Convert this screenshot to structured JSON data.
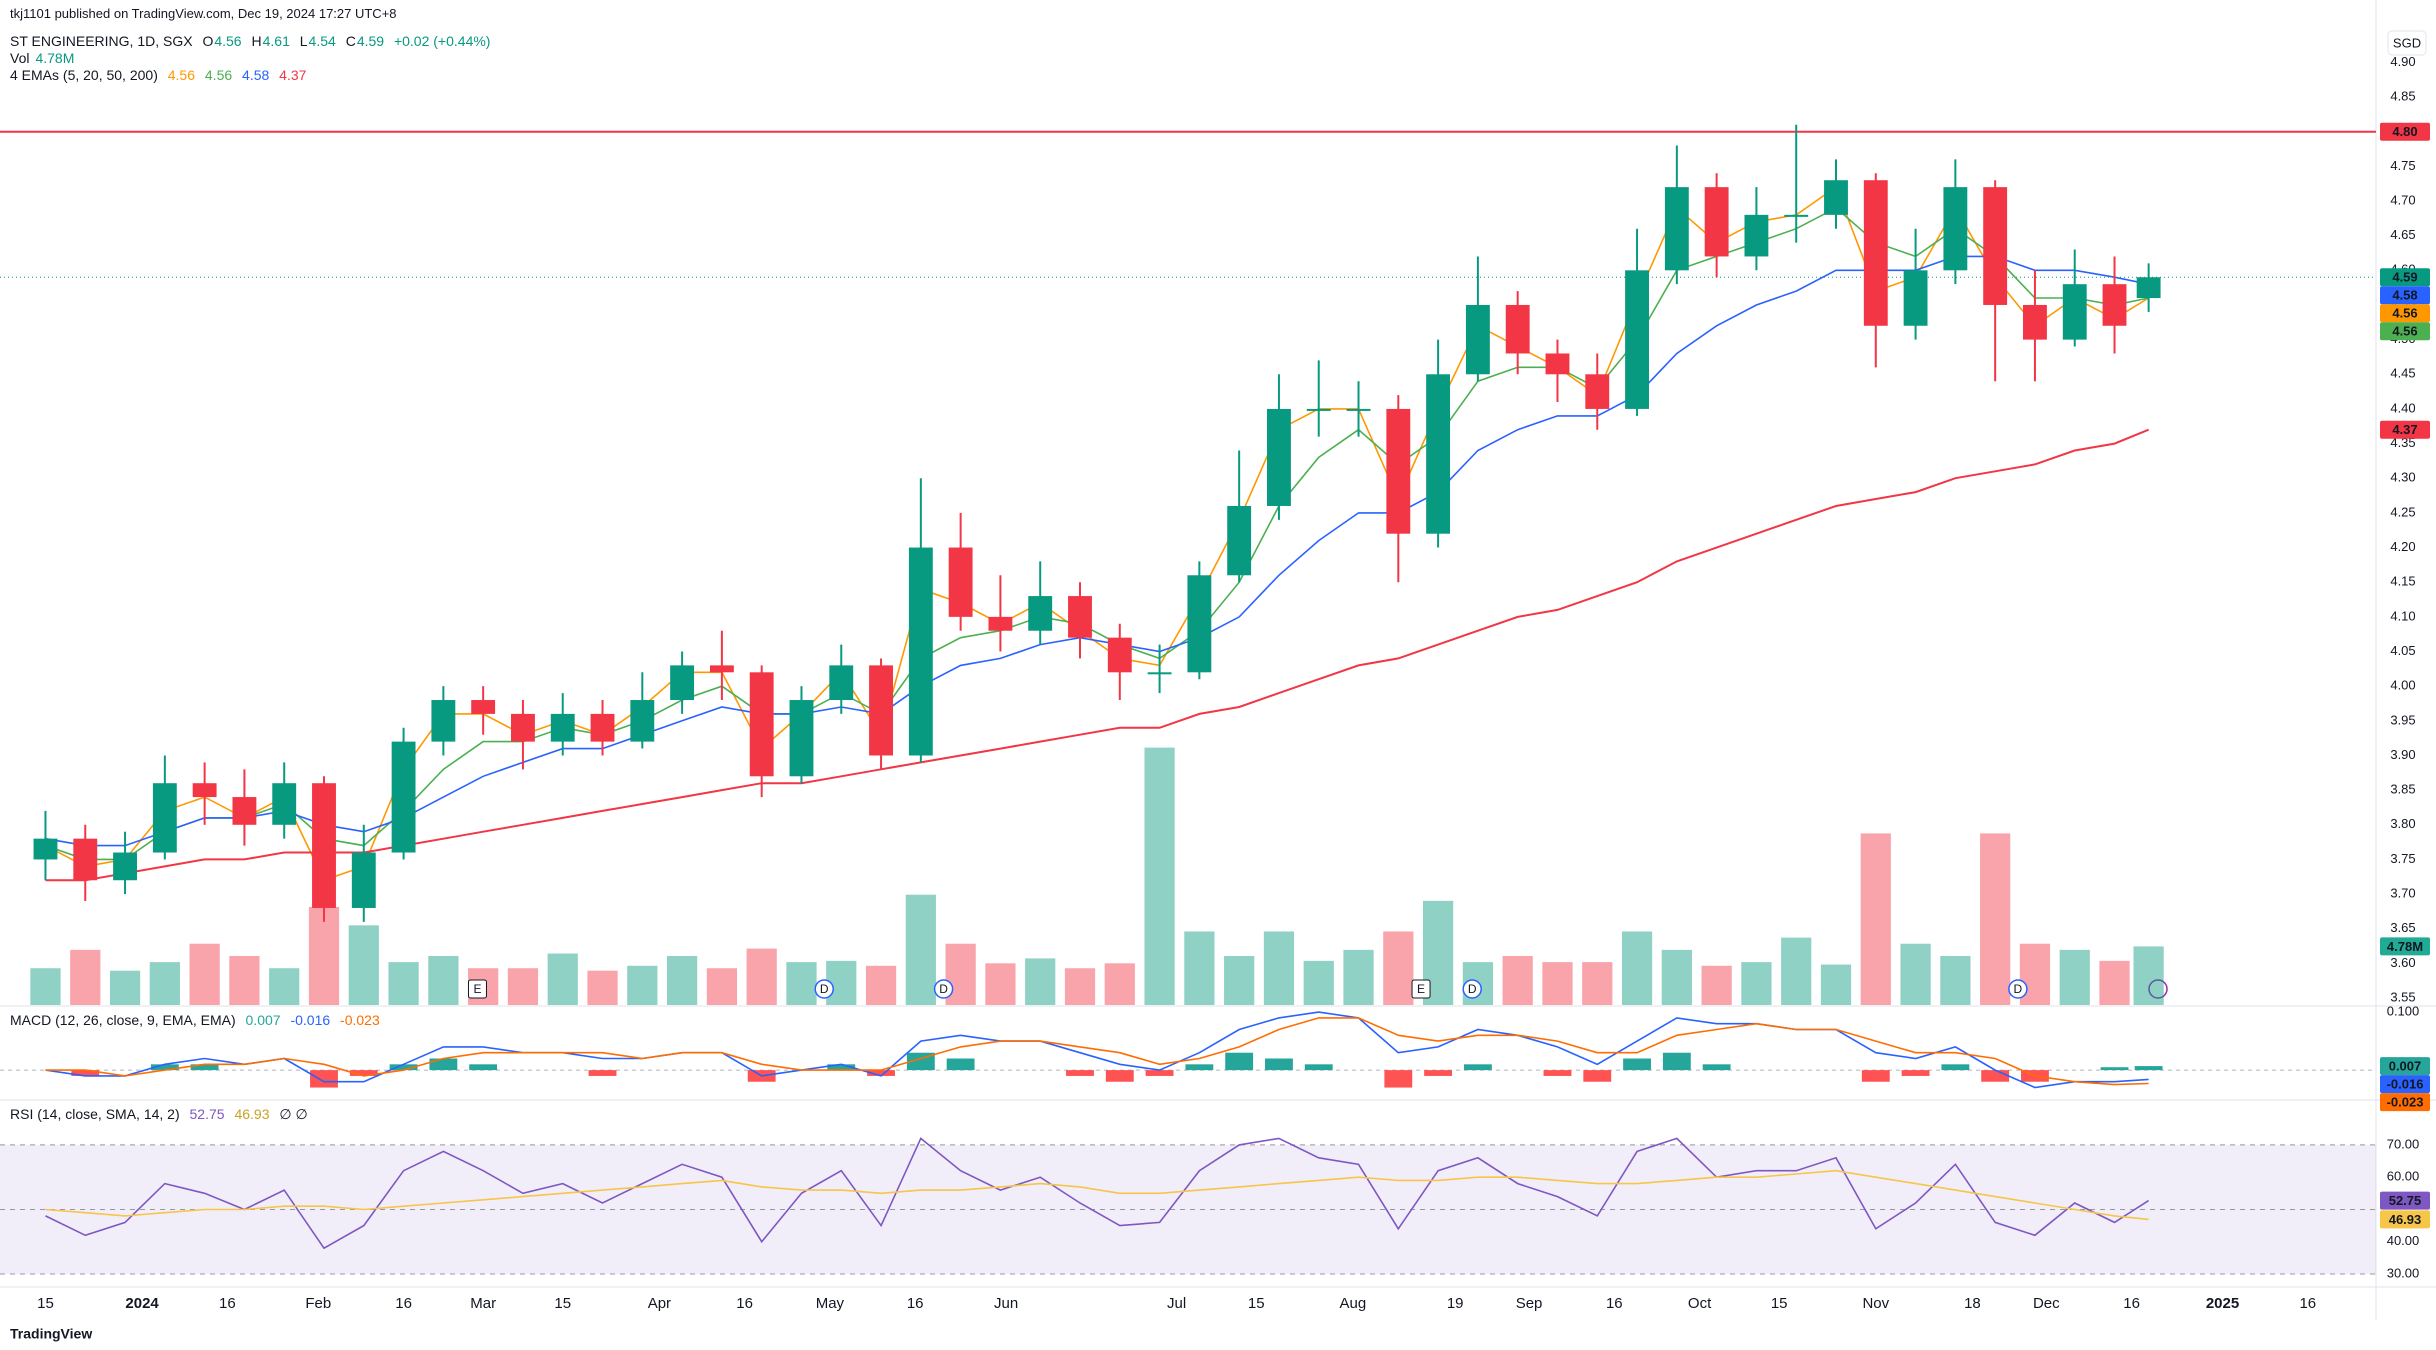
{
  "chart_data": {
    "type": "candlestick",
    "publisher": "tkj1101 published on TradingView.com, Dec 19, 2024 17:27 UTC+8",
    "title": "ST ENGINEERING, 1D, SGX",
    "ohlc_labels": [
      "O",
      "H",
      "L",
      "C"
    ],
    "change_label": "+0.02 (+0.44%)",
    "currency": "SGD",
    "footer": "TradingView",
    "up_color": "#089981",
    "down_color": "#f23645",
    "xlim": [
      "2023-12-07",
      "2025-01-28"
    ],
    "xticks": [
      {
        "value": "2023-12-15",
        "label": "15"
      },
      {
        "value": "2024-01-01",
        "label": "2024"
      },
      {
        "value": "2024-01-16",
        "label": "16"
      },
      {
        "value": "2024-02-01",
        "label": "Feb"
      },
      {
        "value": "2024-02-16",
        "label": "16"
      },
      {
        "value": "2024-03-01",
        "label": "Mar"
      },
      {
        "value": "2024-03-15",
        "label": "15"
      },
      {
        "value": "2024-04-01",
        "label": "Apr"
      },
      {
        "value": "2024-04-16",
        "label": "16"
      },
      {
        "value": "2024-05-01",
        "label": "May"
      },
      {
        "value": "2024-05-16",
        "label": "16"
      },
      {
        "value": "2024-06-01",
        "label": "Jun"
      },
      {
        "value": "2024-07-01",
        "label": "Jul"
      },
      {
        "value": "2024-07-15",
        "label": "15"
      },
      {
        "value": "2024-08-01",
        "label": "Aug"
      },
      {
        "value": "2024-08-19",
        "label": "19"
      },
      {
        "value": "2024-09-01",
        "label": "Sep"
      },
      {
        "value": "2024-09-16",
        "label": "16"
      },
      {
        "value": "2024-10-01",
        "label": "Oct"
      },
      {
        "value": "2024-10-15",
        "label": "15"
      },
      {
        "value": "2024-11-01",
        "label": "Nov"
      },
      {
        "value": "2024-11-18",
        "label": "18"
      },
      {
        "value": "2024-12-01",
        "label": "Dec"
      },
      {
        "value": "2024-12-16",
        "label": "16"
      },
      {
        "value": "2025-01-01",
        "label": "2025"
      },
      {
        "value": "2025-01-16",
        "label": "16"
      }
    ],
    "x": [
      "2023-12-15",
      "2023-12-22",
      "2023-12-29",
      "2024-01-05",
      "2024-01-12",
      "2024-01-19",
      "2024-01-26",
      "2024-02-02",
      "2024-02-09",
      "2024-02-16",
      "2024-02-23",
      "2024-03-01",
      "2024-03-08",
      "2024-03-15",
      "2024-03-22",
      "2024-03-29",
      "2024-04-05",
      "2024-04-12",
      "2024-04-19",
      "2024-04-26",
      "2024-05-03",
      "2024-05-10",
      "2024-05-17",
      "2024-05-24",
      "2024-05-31",
      "2024-06-07",
      "2024-06-14",
      "2024-06-21",
      "2024-06-28",
      "2024-07-05",
      "2024-07-12",
      "2024-07-19",
      "2024-07-26",
      "2024-08-02",
      "2024-08-09",
      "2024-08-16",
      "2024-08-23",
      "2024-08-30",
      "2024-09-06",
      "2024-09-13",
      "2024-09-20",
      "2024-09-27",
      "2024-10-04",
      "2024-10-11",
      "2024-10-18",
      "2024-10-25",
      "2024-11-01",
      "2024-11-08",
      "2024-11-15",
      "2024-11-22",
      "2024-11-29",
      "2024-12-06",
      "2024-12-13",
      "2024-12-19"
    ],
    "ohlc": [
      [
        3.75,
        3.82,
        3.72,
        3.78
      ],
      [
        3.78,
        3.8,
        3.69,
        3.72
      ],
      [
        3.72,
        3.79,
        3.7,
        3.76
      ],
      [
        3.76,
        3.9,
        3.75,
        3.86
      ],
      [
        3.86,
        3.89,
        3.8,
        3.84
      ],
      [
        3.84,
        3.88,
        3.77,
        3.8
      ],
      [
        3.8,
        3.89,
        3.78,
        3.86
      ],
      [
        3.86,
        3.87,
        3.66,
        3.68
      ],
      [
        3.68,
        3.8,
        3.66,
        3.76
      ],
      [
        3.76,
        3.94,
        3.75,
        3.92
      ],
      [
        3.92,
        4.0,
        3.9,
        3.98
      ],
      [
        3.98,
        4.0,
        3.93,
        3.96
      ],
      [
        3.96,
        3.98,
        3.88,
        3.92
      ],
      [
        3.92,
        3.99,
        3.9,
        3.96
      ],
      [
        3.96,
        3.98,
        3.9,
        3.92
      ],
      [
        3.92,
        4.02,
        3.91,
        3.98
      ],
      [
        3.98,
        4.05,
        3.96,
        4.03
      ],
      [
        4.03,
        4.08,
        3.98,
        4.02
      ],
      [
        4.02,
        4.03,
        3.84,
        3.87
      ],
      [
        3.87,
        4.0,
        3.86,
        3.98
      ],
      [
        3.98,
        4.06,
        3.96,
        4.03
      ],
      [
        4.03,
        4.04,
        3.88,
        3.9
      ],
      [
        3.9,
        4.3,
        3.89,
        4.2
      ],
      [
        4.2,
        4.25,
        4.08,
        4.1
      ],
      [
        4.1,
        4.16,
        4.05,
        4.08
      ],
      [
        4.08,
        4.18,
        4.06,
        4.13
      ],
      [
        4.13,
        4.15,
        4.04,
        4.07
      ],
      [
        4.07,
        4.09,
        3.98,
        4.02
      ],
      [
        4.02,
        4.06,
        3.99,
        4.02
      ],
      [
        4.02,
        4.18,
        4.01,
        4.16
      ],
      [
        4.16,
        4.34,
        4.15,
        4.26
      ],
      [
        4.26,
        4.45,
        4.24,
        4.4
      ],
      [
        4.4,
        4.47,
        4.36,
        4.4
      ],
      [
        4.4,
        4.44,
        4.36,
        4.4
      ],
      [
        4.4,
        4.42,
        4.15,
        4.22
      ],
      [
        4.22,
        4.5,
        4.2,
        4.45
      ],
      [
        4.45,
        4.62,
        4.44,
        4.55
      ],
      [
        4.55,
        4.57,
        4.45,
        4.48
      ],
      [
        4.48,
        4.5,
        4.41,
        4.45
      ],
      [
        4.45,
        4.48,
        4.37,
        4.4
      ],
      [
        4.4,
        4.66,
        4.39,
        4.6
      ],
      [
        4.6,
        4.78,
        4.58,
        4.72
      ],
      [
        4.72,
        4.74,
        4.59,
        4.62
      ],
      [
        4.62,
        4.72,
        4.6,
        4.68
      ],
      [
        4.68,
        4.81,
        4.64,
        4.68
      ],
      [
        4.68,
        4.76,
        4.66,
        4.73
      ],
      [
        4.73,
        4.74,
        4.46,
        4.52
      ],
      [
        4.52,
        4.66,
        4.5,
        4.6
      ],
      [
        4.6,
        4.76,
        4.58,
        4.72
      ],
      [
        4.72,
        4.73,
        4.44,
        4.55
      ],
      [
        4.55,
        4.6,
        4.44,
        4.5
      ],
      [
        4.5,
        4.63,
        4.49,
        4.58
      ],
      [
        4.58,
        4.62,
        4.48,
        4.52
      ],
      [
        4.56,
        4.61,
        4.54,
        4.59
      ]
    ],
    "ylim": [
      3.54,
      4.99
    ],
    "yticks": [
      3.55,
      {
        "value": 3.6,
        "label": "3.60"
      },
      3.65,
      {
        "value": 3.7,
        "label": "3.70"
      },
      3.75,
      {
        "value": 3.8,
        "label": "3.80"
      },
      3.85,
      {
        "value": 3.9,
        "label": "3.90"
      },
      3.95,
      {
        "value": 4,
        "label": "4.00"
      },
      4.05,
      {
        "value": 4.1,
        "label": "4.10"
      },
      4.15,
      {
        "value": 4.2,
        "label": "4.20"
      },
      4.25,
      {
        "value": 4.3,
        "label": "4.30"
      },
      4.35,
      {
        "value": 4.4,
        "label": "4.40"
      },
      4.45,
      {
        "value": 4.5,
        "label": "4.50"
      },
      4.55,
      {
        "value": 4.6,
        "label": "4.60"
      },
      4.65,
      {
        "value": 4.7,
        "label": "4.70"
      },
      4.75,
      {
        "value": 4.8,
        "label": "4.80"
      },
      4.85,
      {
        "value": 4.9,
        "label": "4.90"
      }
    ],
    "hline": {
      "value": 4.8,
      "label": "4.80",
      "color": "#f23645"
    },
    "volume": {
      "name": "Vol",
      "value_label": "4.78M",
      "ylim": [
        0,
        82
      ],
      "color": "#089981",
      "values": [
        3.0,
        4.5,
        2.8,
        3.5,
        5.0,
        4.0,
        3.0,
        8.0,
        6.5,
        3.5,
        4.0,
        3.0,
        3.0,
        4.2,
        2.8,
        3.2,
        4.0,
        3.0,
        4.6,
        3.5,
        3.6,
        3.2,
        9.0,
        5.0,
        3.4,
        3.8,
        3.0,
        3.4,
        21.0,
        6.0,
        4.0,
        6.0,
        3.6,
        4.5,
        6.0,
        8.5,
        3.5,
        4.0,
        3.5,
        3.5,
        6.0,
        4.5,
        3.2,
        3.5,
        5.5,
        3.3,
        14.0,
        5.0,
        4.0,
        14.0,
        5.0,
        4.5,
        3.6,
        4.78
      ]
    },
    "ema": {
      "name": "4 EMAs (5, 20, 50, 200)",
      "series": [
        {
          "color": "#ff9800",
          "values": [
            3.77,
            3.74,
            3.75,
            3.82,
            3.84,
            3.81,
            3.84,
            3.72,
            3.74,
            3.88,
            3.96,
            3.96,
            3.93,
            3.95,
            3.93,
            3.97,
            4.02,
            4.02,
            3.91,
            3.96,
            4.02,
            3.93,
            4.14,
            4.12,
            4.09,
            4.12,
            4.08,
            4.04,
            4.03,
            4.13,
            4.24,
            4.37,
            4.4,
            4.4,
            4.27,
            4.4,
            4.52,
            4.49,
            4.46,
            4.42,
            4.56,
            4.69,
            4.64,
            4.67,
            4.68,
            4.72,
            4.57,
            4.59,
            4.69,
            4.59,
            4.52,
            4.56,
            4.53,
            4.56
          ]
        },
        {
          "color": "#4caf50",
          "values": [
            3.77,
            3.75,
            3.75,
            3.79,
            3.81,
            3.81,
            3.83,
            3.78,
            3.77,
            3.82,
            3.88,
            3.92,
            3.92,
            3.94,
            3.93,
            3.95,
            3.98,
            4.0,
            3.96,
            3.96,
            3.99,
            3.96,
            4.04,
            4.07,
            4.08,
            4.1,
            4.09,
            4.06,
            4.04,
            4.08,
            4.15,
            4.26,
            4.33,
            4.37,
            4.32,
            4.36,
            4.44,
            4.46,
            4.46,
            4.43,
            4.5,
            4.6,
            4.62,
            4.64,
            4.66,
            4.69,
            4.64,
            4.62,
            4.66,
            4.62,
            4.56,
            4.56,
            4.55,
            4.56
          ]
        },
        {
          "color": "#2962ff",
          "values": [
            3.78,
            3.77,
            3.77,
            3.79,
            3.81,
            3.81,
            3.82,
            3.8,
            3.79,
            3.81,
            3.84,
            3.87,
            3.89,
            3.91,
            3.91,
            3.93,
            3.95,
            3.97,
            3.96,
            3.96,
            3.97,
            3.96,
            4.0,
            4.03,
            4.04,
            4.06,
            4.07,
            4.06,
            4.05,
            4.07,
            4.1,
            4.16,
            4.21,
            4.25,
            4.25,
            4.28,
            4.34,
            4.37,
            4.39,
            4.39,
            4.42,
            4.48,
            4.52,
            4.55,
            4.57,
            4.6,
            4.6,
            4.6,
            4.62,
            4.62,
            4.6,
            4.6,
            4.59,
            4.58
          ]
        },
        {
          "color": "#f23645",
          "values": [
            3.72,
            3.72,
            3.73,
            3.74,
            3.75,
            3.75,
            3.76,
            3.76,
            3.76,
            3.77,
            3.78,
            3.79,
            3.8,
            3.81,
            3.82,
            3.83,
            3.84,
            3.85,
            3.86,
            3.86,
            3.87,
            3.88,
            3.89,
            3.9,
            3.91,
            3.92,
            3.93,
            3.94,
            3.94,
            3.96,
            3.97,
            3.99,
            4.01,
            4.03,
            4.04,
            4.06,
            4.08,
            4.1,
            4.11,
            4.13,
            4.15,
            4.18,
            4.2,
            4.22,
            4.24,
            4.26,
            4.27,
            4.28,
            4.3,
            4.31,
            4.32,
            4.34,
            4.35,
            4.37
          ]
        }
      ]
    },
    "events": [
      {
        "x": "2024-02-29",
        "label": "E"
      },
      {
        "x": "2024-04-30",
        "label": "D"
      },
      {
        "x": "2024-05-21",
        "label": "D"
      },
      {
        "x": "2024-08-13",
        "label": "E"
      },
      {
        "x": "2024-08-22",
        "label": "D"
      },
      {
        "x": "2024-11-26",
        "label": "D"
      }
    ],
    "macd": {
      "name": "MACD (12, 26, close, 9, EMA, EMA)",
      "ylim": [
        -0.048,
        0.107
      ],
      "yticks": [
        {
          "value": 0.1,
          "label": "0.100"
        }
      ],
      "histogram": {
        "up_color": "#26a69a",
        "down_color": "#ff5252",
        "values": [
          0,
          -0.01,
          0,
          0.01,
          0.01,
          0,
          0,
          -0.03,
          -0.01,
          0.01,
          0.02,
          0.01,
          0,
          0,
          -0.01,
          0,
          0,
          0,
          -0.02,
          0,
          0.01,
          -0.01,
          0.03,
          0.02,
          0,
          0,
          -0.01,
          -0.02,
          -0.01,
          0.01,
          0.03,
          0.02,
          0.01,
          0,
          -0.03,
          -0.01,
          0.01,
          0,
          -0.01,
          -0.02,
          0.02,
          0.03,
          0.01,
          0,
          0,
          0,
          -0.02,
          -0.01,
          0.01,
          -0.02,
          -0.02,
          0,
          0.005,
          0.007
        ]
      },
      "series": [
        {
          "color": "#2962ff",
          "values": [
            0,
            -0.01,
            -0.01,
            0.01,
            0.02,
            0.01,
            0.02,
            -0.02,
            -0.02,
            0.01,
            0.04,
            0.04,
            0.03,
            0.03,
            0.02,
            0.02,
            0.03,
            0.03,
            -0.01,
            0,
            0.01,
            -0.01,
            0.05,
            0.06,
            0.05,
            0.05,
            0.03,
            0.01,
            0,
            0.03,
            0.07,
            0.09,
            0.1,
            0.09,
            0.03,
            0.04,
            0.07,
            0.06,
            0.04,
            0.01,
            0.05,
            0.09,
            0.08,
            0.08,
            0.07,
            0.07,
            0.03,
            0.02,
            0.04,
            0,
            -0.03,
            -0.02,
            -0.02,
            -0.016
          ]
        },
        {
          "color": "#ff6d00",
          "values": [
            0,
            0,
            -0.01,
            0,
            0.01,
            0.01,
            0.02,
            0.01,
            -0.01,
            0,
            0.02,
            0.03,
            0.03,
            0.03,
            0.03,
            0.02,
            0.03,
            0.03,
            0.01,
            0,
            0,
            0,
            0.02,
            0.04,
            0.05,
            0.05,
            0.04,
            0.03,
            0.01,
            0.02,
            0.04,
            0.07,
            0.09,
            0.09,
            0.06,
            0.05,
            0.06,
            0.06,
            0.05,
            0.03,
            0.03,
            0.06,
            0.07,
            0.08,
            0.07,
            0.07,
            0.05,
            0.03,
            0.03,
            0.02,
            -0.01,
            -0.02,
            -0.025,
            -0.023
          ]
        }
      ]
    },
    "rsi": {
      "name": "RSI (14, close, SMA, 14, 2)",
      "extra": "∅ ∅",
      "ylim": [
        26.6,
        83.6
      ],
      "bands": [
        70,
        50,
        30
      ],
      "yticks": [
        {
          "value": 30,
          "label": "30.00"
        },
        {
          "value": 40,
          "label": "40.00"
        },
        {
          "value": 60,
          "label": "60.00"
        },
        {
          "value": 70,
          "label": "70.00"
        }
      ],
      "series": [
        {
          "color": "#7e57c2",
          "values": [
            48,
            42,
            46,
            58,
            55,
            50,
            56,
            38,
            45,
            62,
            68,
            62,
            55,
            58,
            52,
            58,
            64,
            60,
            40,
            55,
            62,
            45,
            72,
            62,
            56,
            60,
            52,
            45,
            46,
            62,
            70,
            72,
            66,
            64,
            44,
            62,
            66,
            58,
            54,
            48,
            68,
            72,
            60,
            62,
            62,
            66,
            44,
            52,
            64,
            46,
            42,
            52,
            46,
            52.75
          ]
        },
        {
          "color": "#f7c548",
          "values": [
            50,
            49,
            48,
            49,
            50,
            50,
            51,
            51,
            50,
            51,
            52,
            53,
            54,
            55,
            56,
            57,
            58,
            59,
            57,
            56,
            56,
            55,
            56,
            56,
            57,
            58,
            57,
            55,
            55,
            56,
            57,
            58,
            59,
            60,
            59,
            59,
            60,
            60,
            59,
            58,
            58,
            59,
            60,
            60,
            61,
            62,
            60,
            58,
            56,
            54,
            52,
            50,
            48,
            46.93
          ]
        }
      ]
    }
  }
}
